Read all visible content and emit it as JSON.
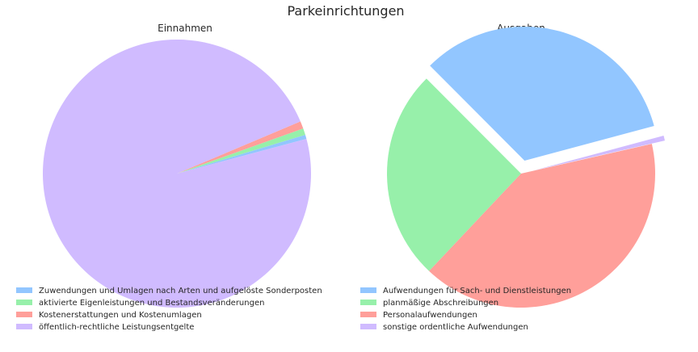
{
  "title": "Parkeinrichtungen",
  "chart_data": [
    {
      "type": "pie",
      "title": "Einnahmen",
      "categories": [
        "Zuwendungen und Umlagen nach Arten und aufgelöste Sonderposten",
        "aktivierte Eigenleistungen und Bestandsveränderungen",
        "Kostenerstattungen und Kostenumlagen",
        "öffentlich-rechtliche Leistungsentgelte"
      ],
      "values": [
        0.5,
        0.8,
        0.9,
        97.8
      ],
      "colors": [
        "#92c6ff",
        "#97f0aa",
        "#ff9f9a",
        "#d0bbff"
      ],
      "start_angle_deg": 15,
      "explode": [
        0,
        0,
        0,
        0
      ]
    },
    {
      "type": "pie",
      "title": "Ausgaben",
      "categories": [
        "Aufwendungen für Sach- und Dienstleistungen",
        "planmäßige Abschreibungen",
        "Personalaufwendungen",
        "sonstige ordentliche Aufwendungen"
      ],
      "values": [
        33.3,
        25.5,
        40.6,
        0.6
      ],
      "colors": [
        "#92c6ff",
        "#97f0aa",
        "#ff9f9a",
        "#d0bbff"
      ],
      "start_angle_deg": 15,
      "explode": [
        0.1,
        0,
        0,
        0.1
      ]
    }
  ]
}
